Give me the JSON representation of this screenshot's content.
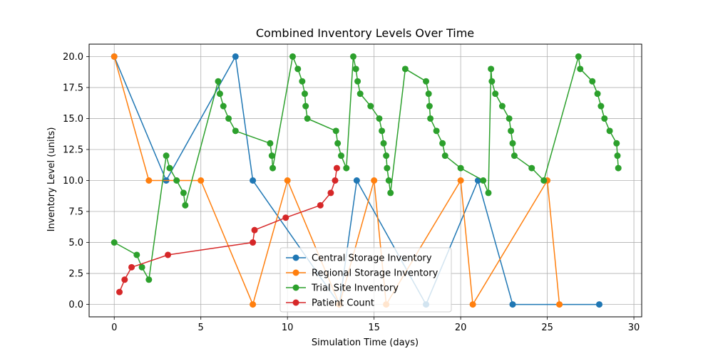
{
  "chart_data": {
    "type": "line",
    "title": "Combined Inventory Levels Over Time",
    "xlabel": "Simulation Time (days)",
    "ylabel": "Inventory Level (units)",
    "xlim": [
      -1.45,
      30.45
    ],
    "ylim": [
      -1.0,
      21.0
    ],
    "xticks": [
      0,
      5,
      10,
      15,
      20,
      25,
      30
    ],
    "xtick_labels": [
      "0",
      "5",
      "10",
      "15",
      "20",
      "25",
      "30"
    ],
    "yticks": [
      0,
      2.5,
      5,
      7.5,
      10,
      12.5,
      15,
      17.5,
      20
    ],
    "ytick_labels": [
      "0.0",
      "2.5",
      "5.0",
      "7.5",
      "10.0",
      "12.5",
      "15.0",
      "17.5",
      "20.0"
    ],
    "grid": true,
    "legend_position": "lower-center",
    "series": [
      {
        "name": "Central Storage Inventory",
        "color": "#1f77b4",
        "x": [
          0,
          3,
          7,
          8,
          13,
          14,
          18,
          21,
          23,
          28
        ],
        "y": [
          20,
          10,
          20,
          10,
          0,
          10,
          0,
          10,
          0,
          0
        ]
      },
      {
        "name": "Regional Storage Inventory",
        "color": "#ff7f0e",
        "x": [
          0,
          2,
          5,
          8,
          10,
          13,
          15,
          15.7,
          20,
          20.7,
          25,
          25.7
        ],
        "y": [
          20,
          10,
          10,
          0,
          10,
          0,
          10,
          0,
          10,
          0,
          10,
          0
        ]
      },
      {
        "name": "Trial Site Inventory",
        "color": "#2ca02c",
        "x": [
          0,
          1.3,
          1.6,
          2,
          3,
          3.2,
          3.6,
          4,
          4.1,
          6,
          6.1,
          6.3,
          6.6,
          7,
          9,
          9.1,
          9.15,
          10.3,
          10.6,
          10.85,
          11,
          11.05,
          11.15,
          12.8,
          12.9,
          13.1,
          13.4,
          13.8,
          13.95,
          14.05,
          14.2,
          14.8,
          15.3,
          15.45,
          15.55,
          15.7,
          15.75,
          15.85,
          15.95,
          16.8,
          18,
          18.15,
          18.2,
          18.25,
          18.6,
          18.95,
          19.1,
          20,
          21.3,
          21.6,
          21.75,
          21.8,
          22,
          22.4,
          22.8,
          22.9,
          23,
          23.1,
          24.1,
          24.8,
          26.8,
          26.9,
          27.6,
          27.9,
          28.1,
          28.3,
          28.6,
          29,
          29.05,
          29.1
        ],
        "y": [
          5,
          4,
          3,
          2,
          12,
          11,
          10,
          9,
          8,
          18,
          17,
          16,
          15,
          14,
          13,
          12,
          11,
          20,
          19,
          18,
          17,
          16,
          15,
          14,
          13,
          12,
          11,
          20,
          19,
          18,
          17,
          16,
          15,
          14,
          13,
          12,
          11,
          10,
          9,
          19,
          18,
          17,
          16,
          15,
          14,
          13,
          12,
          11,
          10,
          9,
          19,
          18,
          17,
          16,
          15,
          14,
          13,
          12,
          11,
          10,
          20,
          19,
          18,
          17,
          16,
          15,
          14,
          13,
          12,
          11
        ]
      },
      {
        "name": "Patient Count",
        "color": "#d62728",
        "x": [
          0.3,
          0.6,
          1,
          3.1,
          8,
          8.1,
          9.9,
          11.9,
          12.5,
          12.75,
          12.85
        ],
        "y": [
          1,
          2,
          3,
          4,
          5,
          6,
          7,
          8,
          9,
          10,
          11
        ]
      }
    ]
  }
}
